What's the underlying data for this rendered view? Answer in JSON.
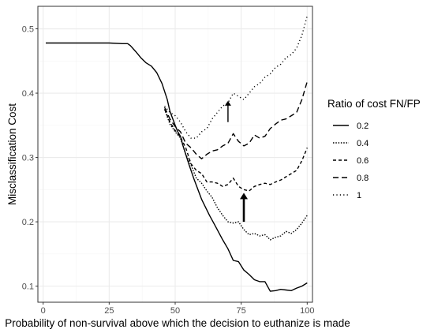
{
  "chart_data": {
    "type": "line",
    "xlabel": "Probability of non-survival above which the decision to euthanize is made",
    "ylabel": "Misclassification Cost",
    "xlim": [
      -2,
      102
    ],
    "ylim": [
      0.075,
      0.535
    ],
    "x_ticks": [
      0,
      25,
      50,
      75,
      100
    ],
    "y_ticks": [
      0.1,
      0.2,
      0.3,
      0.4,
      0.5
    ],
    "x_tick_labels": [
      "0",
      "25",
      "50",
      "75",
      "100"
    ],
    "y_tick_labels": [
      "0.1",
      "0.2",
      "0.3",
      "0.4",
      "0.5"
    ],
    "grid": true,
    "legend_title": "Ratio of cost FN/FP",
    "legend_position": "right",
    "series": [
      {
        "name": "0.2",
        "dash": "solid",
        "x": [
          1,
          10,
          20,
          25,
          30,
          32,
          33,
          35,
          37,
          39,
          41,
          43,
          45,
          47,
          48,
          50,
          51,
          52,
          53,
          55,
          57,
          60,
          63,
          65,
          68,
          70,
          72,
          74,
          76,
          78,
          80,
          82,
          84,
          86,
          88,
          90,
          92,
          94,
          96,
          98,
          100
        ],
        "y": [
          0.478,
          0.478,
          0.478,
          0.478,
          0.477,
          0.477,
          0.474,
          0.465,
          0.455,
          0.447,
          0.442,
          0.432,
          0.415,
          0.39,
          0.372,
          0.35,
          0.34,
          0.333,
          0.318,
          0.292,
          0.268,
          0.235,
          0.21,
          0.195,
          0.172,
          0.158,
          0.14,
          0.138,
          0.125,
          0.118,
          0.11,
          0.107,
          0.107,
          0.092,
          0.093,
          0.095,
          0.094,
          0.093,
          0.097,
          0.1,
          0.105
        ]
      },
      {
        "name": "0.4",
        "dash": "densely-dotted",
        "x": [
          46,
          48,
          50,
          52,
          54,
          56,
          58,
          60,
          62,
          64,
          66,
          68,
          70,
          72,
          74,
          76,
          78,
          80,
          82,
          84,
          86,
          88,
          90,
          92,
          94,
          96,
          98,
          100
        ],
        "y": [
          0.375,
          0.352,
          0.34,
          0.33,
          0.305,
          0.288,
          0.268,
          0.26,
          0.248,
          0.238,
          0.222,
          0.21,
          0.2,
          0.198,
          0.2,
          0.188,
          0.18,
          0.182,
          0.178,
          0.18,
          0.172,
          0.176,
          0.178,
          0.185,
          0.182,
          0.188,
          0.198,
          0.21
        ]
      },
      {
        "name": "0.6",
        "dash": "short-dash",
        "x": [
          46,
          48,
          50,
          52,
          54,
          56,
          58,
          60,
          62,
          64,
          66,
          68,
          70,
          72,
          74,
          76,
          78,
          80,
          82,
          84,
          86,
          88,
          90,
          92,
          94,
          96,
          98,
          100
        ],
        "y": [
          0.375,
          0.355,
          0.342,
          0.332,
          0.315,
          0.29,
          0.28,
          0.275,
          0.262,
          0.262,
          0.26,
          0.255,
          0.258,
          0.268,
          0.255,
          0.25,
          0.248,
          0.255,
          0.258,
          0.26,
          0.258,
          0.262,
          0.265,
          0.27,
          0.275,
          0.28,
          0.295,
          0.315
        ]
      },
      {
        "name": "0.8",
        "dash": "long-dash",
        "x": [
          46,
          48,
          50,
          52,
          54,
          56,
          58,
          60,
          62,
          64,
          66,
          68,
          70,
          72,
          74,
          76,
          78,
          80,
          82,
          84,
          86,
          88,
          90,
          92,
          94,
          96,
          98,
          100
        ],
        "y": [
          0.378,
          0.36,
          0.348,
          0.34,
          0.322,
          0.315,
          0.305,
          0.298,
          0.305,
          0.31,
          0.312,
          0.318,
          0.322,
          0.337,
          0.325,
          0.318,
          0.322,
          0.335,
          0.33,
          0.333,
          0.345,
          0.352,
          0.358,
          0.36,
          0.365,
          0.37,
          0.39,
          0.418
        ]
      },
      {
        "name": "1",
        "dash": "sparse-dotted",
        "x": [
          46,
          48,
          50,
          52,
          54,
          56,
          58,
          60,
          62,
          64,
          66,
          68,
          70,
          72,
          74,
          76,
          78,
          80,
          82,
          84,
          86,
          88,
          90,
          92,
          94,
          96,
          98,
          100
        ],
        "y": [
          0.38,
          0.37,
          0.365,
          0.355,
          0.34,
          0.33,
          0.33,
          0.34,
          0.345,
          0.36,
          0.37,
          0.38,
          0.385,
          0.4,
          0.395,
          0.39,
          0.4,
          0.41,
          0.415,
          0.425,
          0.43,
          0.44,
          0.445,
          0.455,
          0.46,
          0.47,
          0.49,
          0.52
        ]
      }
    ],
    "annotations": [
      {
        "type": "arrow",
        "x": 70,
        "y_from": 0.355,
        "y_to": 0.388,
        "weight": "thin"
      },
      {
        "type": "arrow",
        "x": 76,
        "y_from": 0.2,
        "y_to": 0.245,
        "weight": "thick"
      }
    ],
    "colors": {
      "line": "#000000",
      "grid_major": "#ebebeb",
      "grid_minor": "#f5f5f5",
      "panel_border": "#333333",
      "tick_text": "#4d4d4d"
    }
  }
}
